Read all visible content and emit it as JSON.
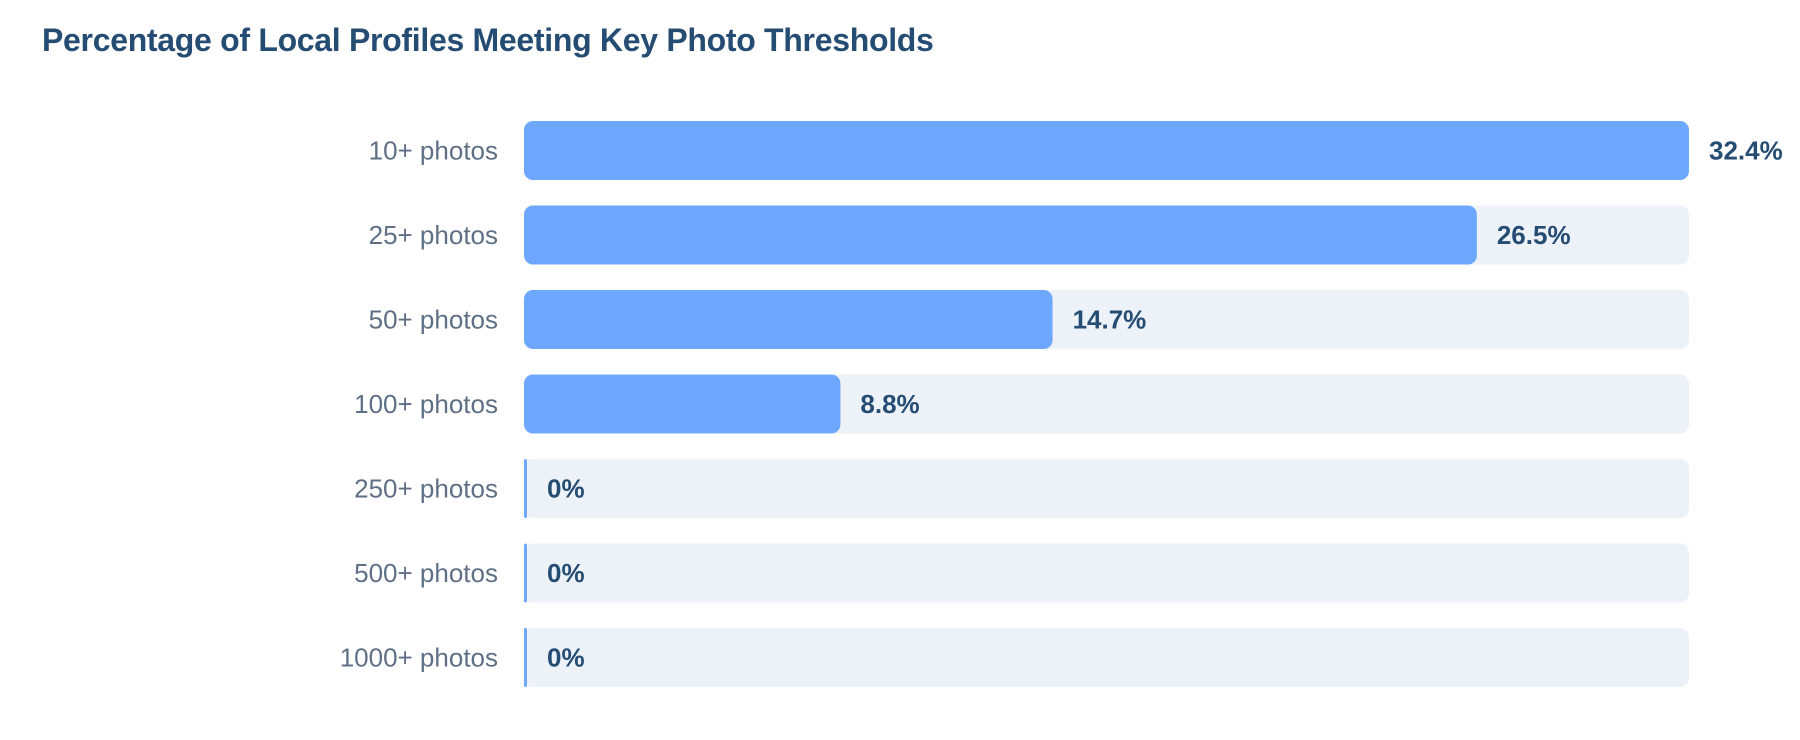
{
  "chart_data": {
    "type": "bar",
    "orientation": "horizontal",
    "title": "Percentage of Local Profiles Meeting Key Photo Thresholds",
    "categories": [
      "10+ photos",
      "25+ photos",
      "50+ photos",
      "100+ photos",
      "250+ photos",
      "500+ photos",
      "1000+ photos"
    ],
    "values": [
      32.4,
      26.5,
      14.7,
      8.8,
      0,
      0,
      0
    ],
    "value_labels": [
      "32.4%",
      "26.5%",
      "14.7%",
      "8.8%",
      "0%",
      "0%",
      "0%"
    ],
    "xlim": [
      0,
      32.4
    ],
    "xlabel": "",
    "ylabel": "",
    "grid": false,
    "legend": "none",
    "colors": {
      "bar": "#6ea8fe",
      "track": "#edf2f9",
      "title": "#254c72",
      "value_text": "#254c72",
      "category_text": "#5f7086"
    }
  }
}
